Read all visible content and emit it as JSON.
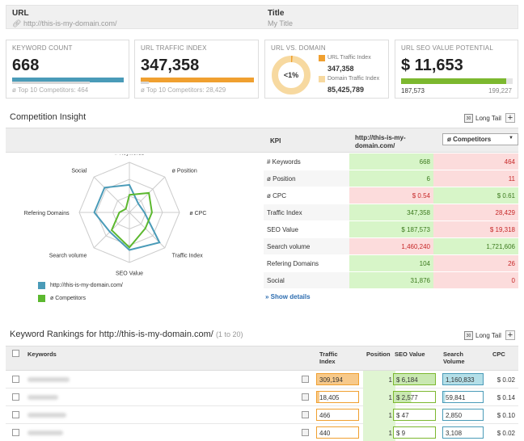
{
  "header": {
    "url_label": "URL",
    "url_value": "http://this-is-my-domain.com/",
    "title_label": "Title",
    "title_value": "My Title"
  },
  "cards": {
    "keyword_count": {
      "title": "Keyword Count",
      "value": "668",
      "sub": "ø Top 10 Competitors: 464",
      "bar_fraction": 1.0,
      "color": "#4a9bb8"
    },
    "traffic_index": {
      "title": "URL Traffic Index",
      "value": "347,358",
      "sub": "ø Top 10 Competitors: 28,429",
      "bar_fraction": 1.0,
      "color": "#f0a030"
    },
    "url_vs_domain": {
      "title": "URL vs. Domain",
      "percent": "<1%",
      "url_label": "URL Traffic Index",
      "url_value": "347,358",
      "domain_label": "Domain Traffic Index",
      "domain_value": "85,425,789",
      "color_url": "#f0a030",
      "color_domain": "#f7d9a0"
    },
    "seo_value": {
      "title": "URL SEO Value Potential",
      "value": "$ 11,653",
      "left": "187,573",
      "right": "199,227",
      "bar_fraction": 0.94,
      "color": "#7cb82f"
    }
  },
  "competition": {
    "title": "Competition Insight",
    "long_tail_label": "Long Tail",
    "plus_label": "+",
    "kpi_header": "KPI",
    "domain_header": "http://this-is-my-domain.com/",
    "select_value": "ø Competitors",
    "show_details": "» Show details",
    "radar_axes": [
      "# Keywords",
      "ø Position",
      "ø CPC",
      "Traffic Index",
      "SEO Value",
      "Search volume",
      "Refering Domains",
      "Social"
    ],
    "radar_domain": [
      0.55,
      0.25,
      0.3,
      0.85,
      0.75,
      0.55,
      0.7,
      0.7
    ],
    "radar_competitors": [
      0.35,
      0.55,
      0.45,
      0.45,
      0.7,
      0.5,
      0.2,
      0.1
    ],
    "legend": [
      {
        "label": "http://this-is-my-domain.com/",
        "color": "#4a9bb8"
      },
      {
        "label": "ø Competitors",
        "color": "#5cb82f"
      }
    ],
    "rows": [
      {
        "kpi": "# Keywords",
        "domain": "668",
        "comp": "464",
        "domain_good": true
      },
      {
        "kpi": "ø Position",
        "domain": "6",
        "comp": "11",
        "domain_good": true
      },
      {
        "kpi": "ø CPC",
        "domain": "$ 0.54",
        "comp": "$ 0.61",
        "domain_good": false
      },
      {
        "kpi": "Traffic Index",
        "domain": "347,358",
        "comp": "28,429",
        "domain_good": true
      },
      {
        "kpi": "SEO Value",
        "domain": "$ 187,573",
        "comp": "$ 19,318",
        "domain_good": true
      },
      {
        "kpi": "Search volume",
        "domain": "1,460,240",
        "comp": "1,721,606",
        "domain_good": false
      },
      {
        "kpi": "Refering Domains",
        "domain": "104",
        "comp": "26",
        "domain_good": true
      },
      {
        "kpi": "Social",
        "domain": "31,876",
        "comp": "0",
        "domain_good": true
      }
    ]
  },
  "rankings": {
    "title": "Keyword Rankings for http://this-is-my-domain.com/",
    "range": "(1 to 20)",
    "long_tail_label": "Long Tail",
    "plus_label": "+",
    "headers": {
      "keywords": "Keywords",
      "traffic": "Traffic Index",
      "position": "Position",
      "seo": "SEO Value",
      "search": "Search Volume",
      "cpc": "CPC"
    },
    "rows": [
      {
        "traffic": "309,194",
        "position": "1",
        "seo": "$ 6,184",
        "search": "1,160,833",
        "cpc": "$ 0.02",
        "traffic_fraction": 1.0,
        "seo_fraction": 1.0,
        "search_fraction": 1.0
      },
      {
        "traffic": "18,405",
        "position": "1",
        "seo": "$ 2,577",
        "search": "59,841",
        "cpc": "$ 0.14",
        "traffic_fraction": 0.06,
        "seo_fraction": 0.42,
        "search_fraction": 0.05
      },
      {
        "traffic": "466",
        "position": "1",
        "seo": "$ 47",
        "search": "2,850",
        "cpc": "$ 0.10",
        "traffic_fraction": 0.0,
        "seo_fraction": 0.01,
        "search_fraction": 0.0
      },
      {
        "traffic": "440",
        "position": "1",
        "seo": "$ 9",
        "search": "3,108",
        "cpc": "$ 0.02",
        "traffic_fraction": 0.0,
        "seo_fraction": 0.0,
        "search_fraction": 0.0
      }
    ]
  }
}
